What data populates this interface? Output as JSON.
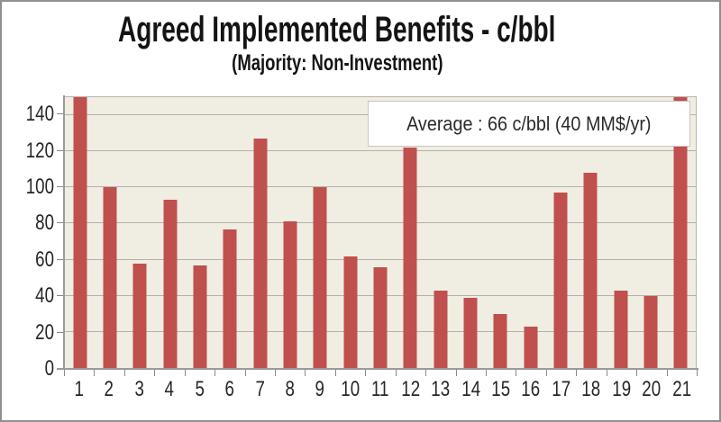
{
  "chart": {
    "title": "Agreed Implemented Benefits - c/bbl",
    "subtitle": "(Majority: Non-Investment)",
    "annotation": "Average : 66 c/bbl (40 MM$/yr)"
  },
  "chart_data": {
    "type": "bar",
    "title": "Agreed Implemented Benefits - c/bbl",
    "subtitle": "(Majority: Non-Investment)",
    "annotation": "Average : 66 c/bbl (40 MM$/yr)",
    "categories": [
      "1",
      "2",
      "3",
      "4",
      "5",
      "6",
      "7",
      "8",
      "9",
      "10",
      "11",
      "12",
      "13",
      "14",
      "15",
      "16",
      "17",
      "18",
      "19",
      "20",
      "21"
    ],
    "values": [
      150,
      100,
      58,
      93,
      57,
      77,
      127,
      81,
      100,
      62,
      56,
      122,
      43,
      39,
      30,
      23,
      97,
      108,
      43,
      40,
      150
    ],
    "clipped_bars": [
      "1",
      "21"
    ],
    "xlabel": "",
    "ylabel": "",
    "ylim": [
      0,
      150
    ],
    "yticks": [
      0,
      20,
      40,
      60,
      80,
      100,
      120,
      140
    ],
    "grid": "horizontal-only",
    "legend": "none",
    "colors": {
      "bar": "#c0504d",
      "plot_background": "#f0ede3",
      "gridline": "#b3b1a9",
      "axis": "#9a9a96",
      "text": "#262626",
      "frame_border": "#8f8f8f",
      "annotation_background": "#ffffff",
      "annotation_border": "#c8c6be"
    }
  }
}
